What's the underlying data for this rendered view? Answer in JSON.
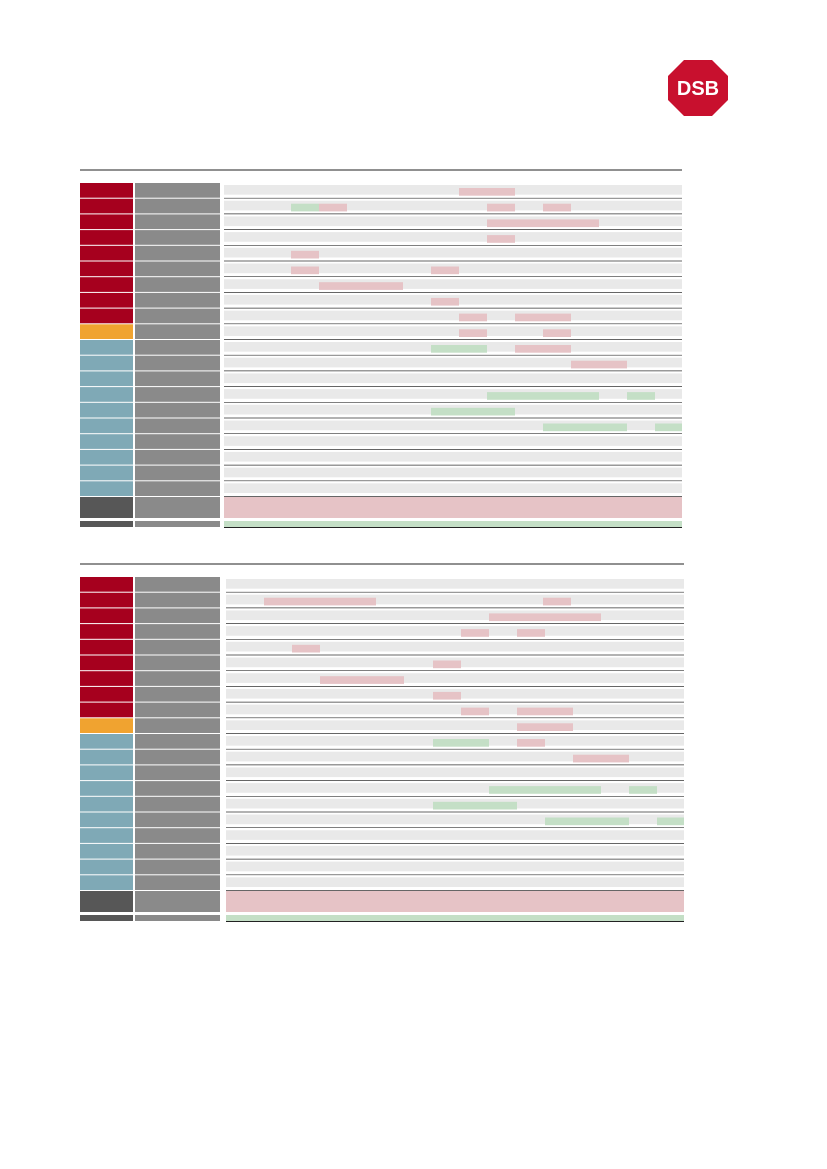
{
  "logo": {
    "text": "DSB"
  }
}
